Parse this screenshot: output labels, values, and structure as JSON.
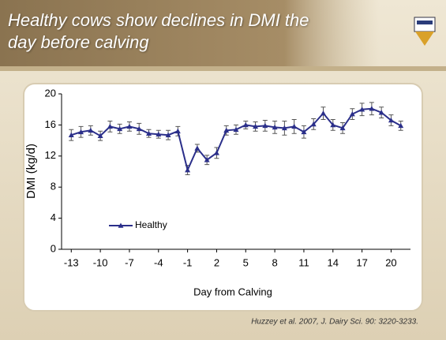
{
  "chart_data": {
    "type": "line",
    "title": "Healthy cows show declines in DMI the day before calving",
    "x": [
      -13,
      -12,
      -11,
      -10,
      -9,
      -8,
      -7,
      -6,
      -5,
      -4,
      -3,
      -2,
      -1,
      0,
      1,
      2,
      3,
      4,
      5,
      6,
      7,
      8,
      9,
      10,
      11,
      12,
      13,
      14,
      15,
      16,
      17,
      18,
      19,
      20,
      21
    ],
    "series": [
      {
        "name": "Healthy",
        "color": "#2b2f8a",
        "values": [
          14.7,
          15.1,
          15.3,
          14.6,
          15.8,
          15.5,
          15.8,
          15.5,
          14.9,
          14.8,
          14.7,
          15.2,
          10.2,
          13.0,
          11.5,
          12.4,
          15.3,
          15.4,
          16.0,
          15.8,
          15.9,
          15.7,
          15.6,
          15.8,
          15.1,
          16.1,
          17.5,
          16.0,
          15.6,
          17.4,
          18.0,
          18.1,
          17.6,
          16.6,
          15.9
        ],
        "errors": [
          0.7,
          0.7,
          0.6,
          0.6,
          0.7,
          0.6,
          0.6,
          0.7,
          0.5,
          0.5,
          0.6,
          0.6,
          0.6,
          0.5,
          0.6,
          0.7,
          0.6,
          0.6,
          0.5,
          0.6,
          0.7,
          0.8,
          0.9,
          0.9,
          0.8,
          0.7,
          0.8,
          0.7,
          0.7,
          0.7,
          0.8,
          0.8,
          0.7,
          0.7,
          0.6
        ]
      }
    ],
    "xlabel": "Day from Calving",
    "ylabel": "DMI (kg/d)",
    "xlim": [
      -14,
      22
    ],
    "xticks": [
      -13,
      -10,
      -7,
      -4,
      -1,
      2,
      5,
      8,
      11,
      14,
      17,
      20
    ],
    "ylim": [
      0,
      20
    ],
    "yticks": [
      0,
      4,
      8,
      12,
      16,
      20
    ],
    "legend": "lower left",
    "citation": "Huzzey et al. 2007, J. Dairy Sci. 90: 3220-3233."
  }
}
